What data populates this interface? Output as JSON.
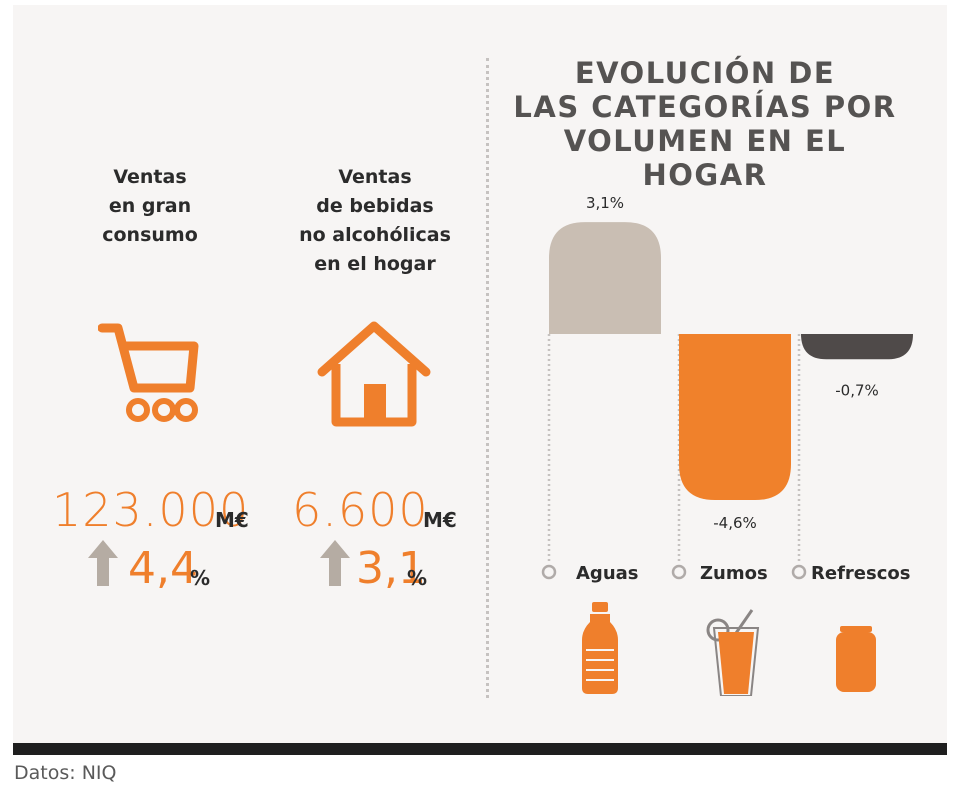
{
  "left_stats": [
    {
      "label": "Ventas\nen gran\nconsumo",
      "value": "123.000",
      "unit": "M€",
      "change": "4,4",
      "change_unit": "%",
      "icon": "shopping-cart-icon",
      "trend": "up"
    },
    {
      "label": "Ventas\nde bebidas\nno alcohólicas\nen el hogar",
      "value": "6.600",
      "unit": "M€",
      "change": "3,1",
      "change_unit": "%",
      "icon": "house-icon",
      "trend": "up"
    }
  ],
  "chart_data": {
    "type": "bar",
    "title": "EVOLUCIÓN DE\nLAS CATEGORÍAS POR\nVOLUMEN EN EL HOGAR",
    "categories": [
      "Aguas",
      "Zumos",
      "Refrescos"
    ],
    "values": [
      3.1,
      -4.6,
      -0.7
    ],
    "value_labels": [
      "3,1%",
      "-4,6%",
      "-0,7%"
    ],
    "colors": [
      "#c9beb3",
      "#f0812b",
      "#4f4a49"
    ],
    "icons": [
      "water-bottle-icon",
      "juice-glass-icon",
      "soda-can-icon"
    ],
    "xlabel": "",
    "ylabel": "",
    "grid": false
  },
  "colors": {
    "accent": "#ef7f2c",
    "arrow": "#b5aca3",
    "bottom_bar": "#1f1f1f"
  },
  "source": "Datos: NIQ"
}
